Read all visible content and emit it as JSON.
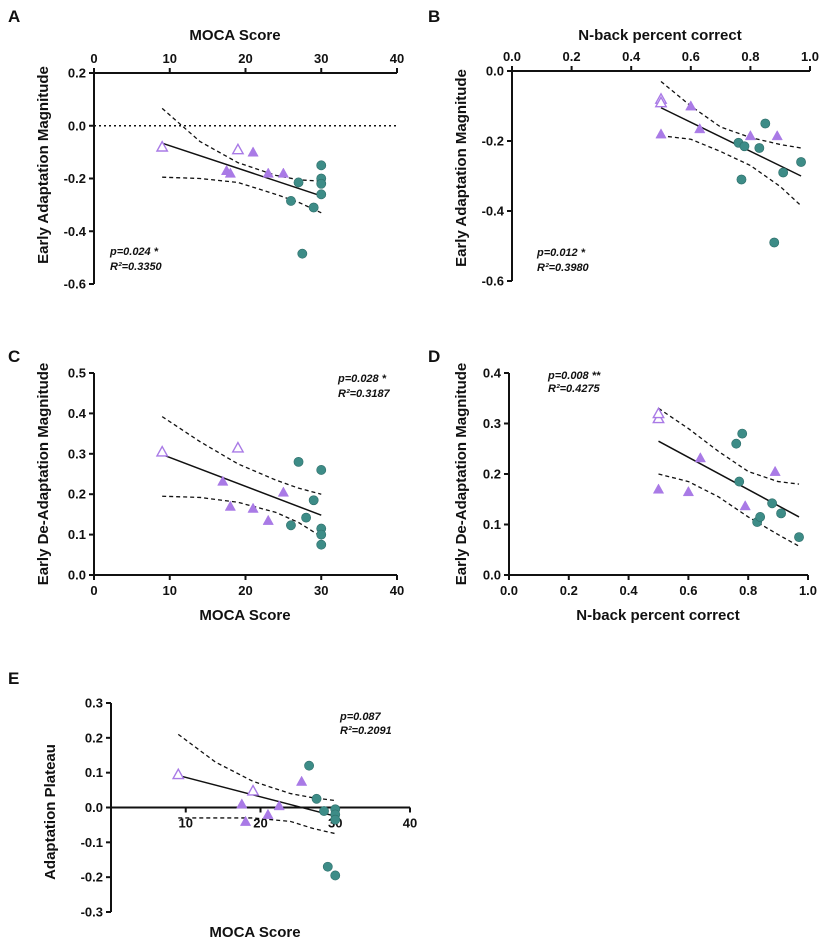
{
  "colors": {
    "purple": "#a97ae6",
    "teal": "#3d8c87",
    "axis": "#111111"
  },
  "chart_data": [
    {
      "id": "A",
      "type": "scatter",
      "panel_label": "A",
      "xlabel": "MOCA Score",
      "ylabel": "Early Adaptation Magnitude",
      "xlim": [
        0,
        40
      ],
      "ylim": [
        -0.6,
        0.2
      ],
      "xticks": [
        0,
        10,
        20,
        30,
        40
      ],
      "yticks": [
        -0.6,
        -0.4,
        -0.2,
        0.0,
        0.2
      ],
      "xtick_labels": [
        "0",
        "10",
        "20",
        "30",
        "40"
      ],
      "ytick_labels": [
        "-0.6",
        "-0.4",
        "-0.2",
        "0.0",
        "0.2"
      ],
      "x_axis_position": "top",
      "zero_dotted": true,
      "stats": {
        "p": "p=0.024 *",
        "r2": "R²=0.3350",
        "position": "bottom-left"
      },
      "fit": {
        "x": [
          9,
          30
        ],
        "y": [
          -0.066,
          -0.266
        ]
      },
      "ci_upper": [
        [
          9,
          0.066
        ],
        [
          14,
          -0.06
        ],
        [
          19,
          -0.14
        ],
        [
          24,
          -0.188
        ],
        [
          27,
          -0.205
        ],
        [
          30,
          -0.21
        ]
      ],
      "ci_lower": [
        [
          9,
          -0.195
        ],
        [
          14,
          -0.2
        ],
        [
          19,
          -0.215
        ],
        [
          24,
          -0.26
        ],
        [
          27,
          -0.29
        ],
        [
          30,
          -0.33
        ]
      ],
      "series": [
        {
          "name": "purple-open-triangles",
          "marker": "triangle-open",
          "color": "purple",
          "points": [
            [
              9,
              -0.08
            ],
            [
              19,
              -0.09
            ]
          ]
        },
        {
          "name": "purple-filled-triangles",
          "marker": "triangle",
          "color": "purple",
          "points": [
            [
              17.5,
              -0.17
            ],
            [
              18,
              -0.18
            ],
            [
              21,
              -0.1
            ],
            [
              23,
              -0.18
            ],
            [
              25,
              -0.18
            ]
          ]
        },
        {
          "name": "teal-circles",
          "marker": "circle",
          "color": "teal",
          "points": [
            [
              26,
              -0.285
            ],
            [
              27,
              -0.215
            ],
            [
              27.5,
              -0.485
            ],
            [
              29,
              -0.31
            ],
            [
              30,
              -0.15
            ],
            [
              30,
              -0.2
            ],
            [
              30,
              -0.22
            ],
            [
              30,
              -0.26
            ]
          ]
        }
      ]
    },
    {
      "id": "B",
      "type": "scatter",
      "panel_label": "B",
      "xlabel": "N-back percent correct",
      "ylabel": "Early Adaptation Magnitude",
      "xlim": [
        0,
        1
      ],
      "ylim": [
        -0.6,
        0.0
      ],
      "xticks": [
        0,
        0.2,
        0.4,
        0.6,
        0.8,
        1.0
      ],
      "yticks": [
        -0.6,
        -0.4,
        -0.2,
        0.0
      ],
      "xtick_labels": [
        "0.0",
        "0.2",
        "0.4",
        "0.6",
        "0.8",
        "1.0"
      ],
      "ytick_labels": [
        "-0.6",
        "-0.4",
        "-0.2",
        "0.0"
      ],
      "x_axis_position": "top",
      "zero_dotted": false,
      "stats": {
        "p": "p=0.012 *",
        "r2": "R²=0.3980",
        "position": "bottom-left"
      },
      "fit": {
        "x": [
          0.5,
          0.97
        ],
        "y": [
          -0.105,
          -0.3
        ]
      },
      "ci_upper": [
        [
          0.5,
          -0.03
        ],
        [
          0.6,
          -0.1
        ],
        [
          0.7,
          -0.16
        ],
        [
          0.8,
          -0.19
        ],
        [
          0.9,
          -0.21
        ],
        [
          0.97,
          -0.22
        ]
      ],
      "ci_lower": [
        [
          0.5,
          -0.185
        ],
        [
          0.6,
          -0.195
        ],
        [
          0.7,
          -0.23
        ],
        [
          0.8,
          -0.27
        ],
        [
          0.9,
          -0.33
        ],
        [
          0.97,
          -0.385
        ]
      ],
      "series": [
        {
          "name": "purple-open-triangles",
          "marker": "triangle-open",
          "color": "purple",
          "points": [
            [
              0.5,
              -0.08
            ],
            [
              0.5,
              -0.09
            ]
          ]
        },
        {
          "name": "purple-filled-triangles",
          "marker": "triangle",
          "color": "purple",
          "points": [
            [
              0.5,
              -0.18
            ],
            [
              0.6,
              -0.1
            ],
            [
              0.63,
              -0.165
            ],
            [
              0.8,
              -0.185
            ],
            [
              0.89,
              -0.185
            ]
          ]
        },
        {
          "name": "teal-circles",
          "marker": "circle",
          "color": "teal",
          "points": [
            [
              0.76,
              -0.205
            ],
            [
              0.77,
              -0.31
            ],
            [
              0.78,
              -0.215
            ],
            [
              0.83,
              -0.22
            ],
            [
              0.85,
              -0.15
            ],
            [
              0.88,
              -0.49
            ],
            [
              0.91,
              -0.29
            ],
            [
              0.97,
              -0.26
            ]
          ]
        }
      ]
    },
    {
      "id": "C",
      "type": "scatter",
      "panel_label": "C",
      "xlabel": "MOCA Score",
      "ylabel": "Early De-Adaptation Magnitude",
      "xlim": [
        0,
        40
      ],
      "ylim": [
        0,
        0.5
      ],
      "xticks": [
        0,
        10,
        20,
        30,
        40
      ],
      "yticks": [
        0,
        0.1,
        0.2,
        0.3,
        0.4,
        0.5
      ],
      "xtick_labels": [
        "0",
        "10",
        "20",
        "30",
        "40"
      ],
      "ytick_labels": [
        "0.0",
        "0.1",
        "0.2",
        "0.3",
        "0.4",
        "0.5"
      ],
      "x_axis_position": "bottom",
      "zero_dotted": false,
      "stats": {
        "p": "p=0.028 *",
        "r2": "R²=0.3187",
        "position": "top-right"
      },
      "fit": {
        "x": [
          9,
          30
        ],
        "y": [
          0.298,
          0.148
        ]
      },
      "ci_upper": [
        [
          9,
          0.392
        ],
        [
          14,
          0.33
        ],
        [
          19,
          0.275
        ],
        [
          24,
          0.235
        ],
        [
          27,
          0.215
        ],
        [
          30,
          0.2
        ]
      ],
      "ci_lower": [
        [
          9,
          0.195
        ],
        [
          14,
          0.192
        ],
        [
          19,
          0.18
        ],
        [
          24,
          0.155
        ],
        [
          27,
          0.13
        ],
        [
          30,
          0.095
        ]
      ],
      "series": [
        {
          "name": "purple-open-triangles",
          "marker": "triangle-open",
          "color": "purple",
          "points": [
            [
              9,
              0.305
            ],
            [
              19,
              0.315
            ]
          ]
        },
        {
          "name": "purple-filled-triangles",
          "marker": "triangle",
          "color": "purple",
          "points": [
            [
              17,
              0.232
            ],
            [
              18,
              0.17
            ],
            [
              21,
              0.165
            ],
            [
              23,
              0.135
            ],
            [
              25,
              0.205
            ]
          ]
        },
        {
          "name": "teal-circles",
          "marker": "circle",
          "color": "teal",
          "points": [
            [
              26,
              0.123
            ],
            [
              27,
              0.28
            ],
            [
              28,
              0.142
            ],
            [
              29,
              0.185
            ],
            [
              30,
              0.26
            ],
            [
              30,
              0.115
            ],
            [
              30,
              0.1
            ],
            [
              30,
              0.075
            ]
          ]
        }
      ]
    },
    {
      "id": "D",
      "type": "scatter",
      "panel_label": "D",
      "xlabel": "N-back percent correct",
      "ylabel": "Early De-Adaptation Magnitude",
      "xlim": [
        0,
        1
      ],
      "ylim": [
        0,
        0.4
      ],
      "xticks": [
        0,
        0.2,
        0.4,
        0.6,
        0.8,
        1.0
      ],
      "yticks": [
        0,
        0.1,
        0.2,
        0.3,
        0.4
      ],
      "xtick_labels": [
        "0.0",
        "0.2",
        "0.4",
        "0.6",
        "0.8",
        "1.0"
      ],
      "ytick_labels": [
        "0.0",
        "0.1",
        "0.2",
        "0.3",
        "0.4"
      ],
      "x_axis_position": "bottom",
      "zero_dotted": false,
      "stats": {
        "p": "p=0.008 **",
        "r2": "R²=0.4275",
        "position": "top-left"
      },
      "fit": {
        "x": [
          0.5,
          0.97
        ],
        "y": [
          0.265,
          0.115
        ]
      },
      "ci_upper": [
        [
          0.5,
          0.33
        ],
        [
          0.6,
          0.29
        ],
        [
          0.7,
          0.245
        ],
        [
          0.8,
          0.205
        ],
        [
          0.9,
          0.185
        ],
        [
          0.97,
          0.18
        ]
      ],
      "ci_lower": [
        [
          0.5,
          0.2
        ],
        [
          0.6,
          0.185
        ],
        [
          0.7,
          0.155
        ],
        [
          0.8,
          0.115
        ],
        [
          0.9,
          0.08
        ],
        [
          0.97,
          0.057
        ]
      ],
      "series": [
        {
          "name": "purple-open-triangles",
          "marker": "triangle-open",
          "color": "purple",
          "points": [
            [
              0.5,
              0.31
            ],
            [
              0.5,
              0.32
            ]
          ]
        },
        {
          "name": "purple-filled-triangles",
          "marker": "triangle",
          "color": "purple",
          "points": [
            [
              0.5,
              0.17
            ],
            [
              0.6,
              0.165
            ],
            [
              0.64,
              0.232
            ],
            [
              0.79,
              0.137
            ],
            [
              0.89,
              0.205
            ]
          ]
        },
        {
          "name": "teal-circles",
          "marker": "circle",
          "color": "teal",
          "points": [
            [
              0.76,
              0.26
            ],
            [
              0.77,
              0.185
            ],
            [
              0.78,
              0.28
            ],
            [
              0.83,
              0.105
            ],
            [
              0.84,
              0.115
            ],
            [
              0.88,
              0.142
            ],
            [
              0.91,
              0.122
            ],
            [
              0.97,
              0.075
            ]
          ]
        }
      ]
    },
    {
      "id": "E",
      "type": "scatter",
      "panel_label": "E",
      "xlabel": "MOCA Score",
      "ylabel": "Adaptation Plateau",
      "xlim": [
        0,
        40
      ],
      "ylim": [
        -0.3,
        0.3
      ],
      "xticks": [
        10,
        20,
        30,
        40
      ],
      "yticks": [
        -0.3,
        -0.2,
        -0.1,
        0.0,
        0.1,
        0.2,
        0.3
      ],
      "xtick_labels": [
        "10",
        "20",
        "30",
        "40"
      ],
      "ytick_labels": [
        "-0.3",
        "-0.2",
        "-0.1",
        "0.0",
        "0.1",
        "0.2",
        "0.3"
      ],
      "x_axis_position": "zero",
      "zero_dotted": false,
      "stats": {
        "p": "p=0.087",
        "r2": "R²=0.2091",
        "position": "top-right"
      },
      "fit": {
        "x": [
          9,
          30
        ],
        "y": [
          0.092,
          -0.025
        ]
      },
      "ci_upper": [
        [
          9,
          0.21
        ],
        [
          14,
          0.13
        ],
        [
          19,
          0.075
        ],
        [
          24,
          0.04
        ],
        [
          27,
          0.028
        ],
        [
          30,
          0.02
        ]
      ],
      "ci_lower": [
        [
          9,
          -0.03
        ],
        [
          14,
          -0.03
        ],
        [
          19,
          -0.03
        ],
        [
          24,
          -0.04
        ],
        [
          27,
          -0.06
        ],
        [
          30,
          -0.075
        ]
      ],
      "series": [
        {
          "name": "purple-open-triangles",
          "marker": "triangle-open",
          "color": "purple",
          "points": [
            [
              9,
              0.095
            ],
            [
              19,
              0.048
            ]
          ]
        },
        {
          "name": "purple-filled-triangles",
          "marker": "triangle",
          "color": "purple",
          "points": [
            [
              17.5,
              0.01
            ],
            [
              18,
              -0.04
            ],
            [
              21,
              -0.02
            ],
            [
              22.5,
              0.005
            ],
            [
              25.5,
              0.075
            ]
          ]
        },
        {
          "name": "teal-circles",
          "marker": "circle",
          "color": "teal",
          "points": [
            [
              26.5,
              0.12
            ],
            [
              27.5,
              0.025
            ],
            [
              28.5,
              -0.01
            ],
            [
              29,
              -0.17
            ],
            [
              30,
              -0.005
            ],
            [
              30,
              -0.02
            ],
            [
              30,
              -0.035
            ],
            [
              30,
              -0.195
            ]
          ]
        }
      ]
    }
  ]
}
